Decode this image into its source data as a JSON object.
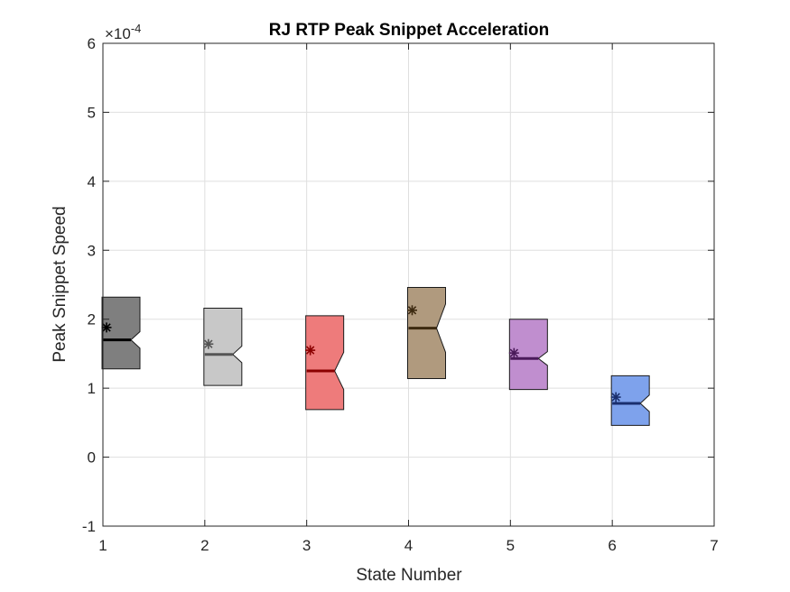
{
  "chart_data": {
    "type": "boxplot",
    "title": "RJ  RTP Peak Snippet Acceleration",
    "xlabel": "State Number",
    "ylabel": "Peak Snippet Speed",
    "y_exponent_label": "×10",
    "y_exponent_power": "-4",
    "xlim": [
      1,
      7
    ],
    "ylim": [
      -1,
      6
    ],
    "x_ticks": [
      1,
      2,
      3,
      4,
      5,
      6,
      7
    ],
    "y_ticks": [
      -1,
      0,
      1,
      2,
      3,
      4,
      5,
      6
    ],
    "grid": true,
    "boxes": [
      {
        "state": 1,
        "q1": 1.28,
        "median": 1.7,
        "q3": 2.32,
        "notch_low": 1.58,
        "notch_high": 1.82,
        "mean": 1.88,
        "fill": "#7f7f7f",
        "median_color": "#000000",
        "mean_color": "#000000"
      },
      {
        "state": 2,
        "q1": 1.04,
        "median": 1.49,
        "q3": 2.16,
        "notch_low": 1.37,
        "notch_high": 1.61,
        "mean": 1.64,
        "fill": "#c8c8c8",
        "median_color": "#555555",
        "mean_color": "#555555"
      },
      {
        "state": 3,
        "q1": 0.69,
        "median": 1.25,
        "q3": 2.05,
        "notch_low": 0.98,
        "notch_high": 1.52,
        "mean": 1.55,
        "fill": "#ee7b7b",
        "median_color": "#8b0000",
        "mean_color": "#8b0000"
      },
      {
        "state": 4,
        "q1": 1.14,
        "median": 1.87,
        "q3": 2.46,
        "notch_low": 1.52,
        "notch_high": 2.22,
        "mean": 2.13,
        "fill": "#b09a7e",
        "median_color": "#3d2a10",
        "mean_color": "#3d2a10"
      },
      {
        "state": 5,
        "q1": 0.98,
        "median": 1.43,
        "q3": 2.0,
        "notch_low": 1.33,
        "notch_high": 1.53,
        "mean": 1.51,
        "fill": "#c08ecf",
        "median_color": "#4a1a5a",
        "mean_color": "#4a1a5a"
      },
      {
        "state": 6,
        "q1": 0.46,
        "median": 0.78,
        "q3": 1.18,
        "notch_low": 0.66,
        "notch_high": 0.9,
        "mean": 0.87,
        "fill": "#7ea2ec",
        "median_color": "#1a2f6e",
        "mean_color": "#1a2f6e"
      }
    ]
  }
}
